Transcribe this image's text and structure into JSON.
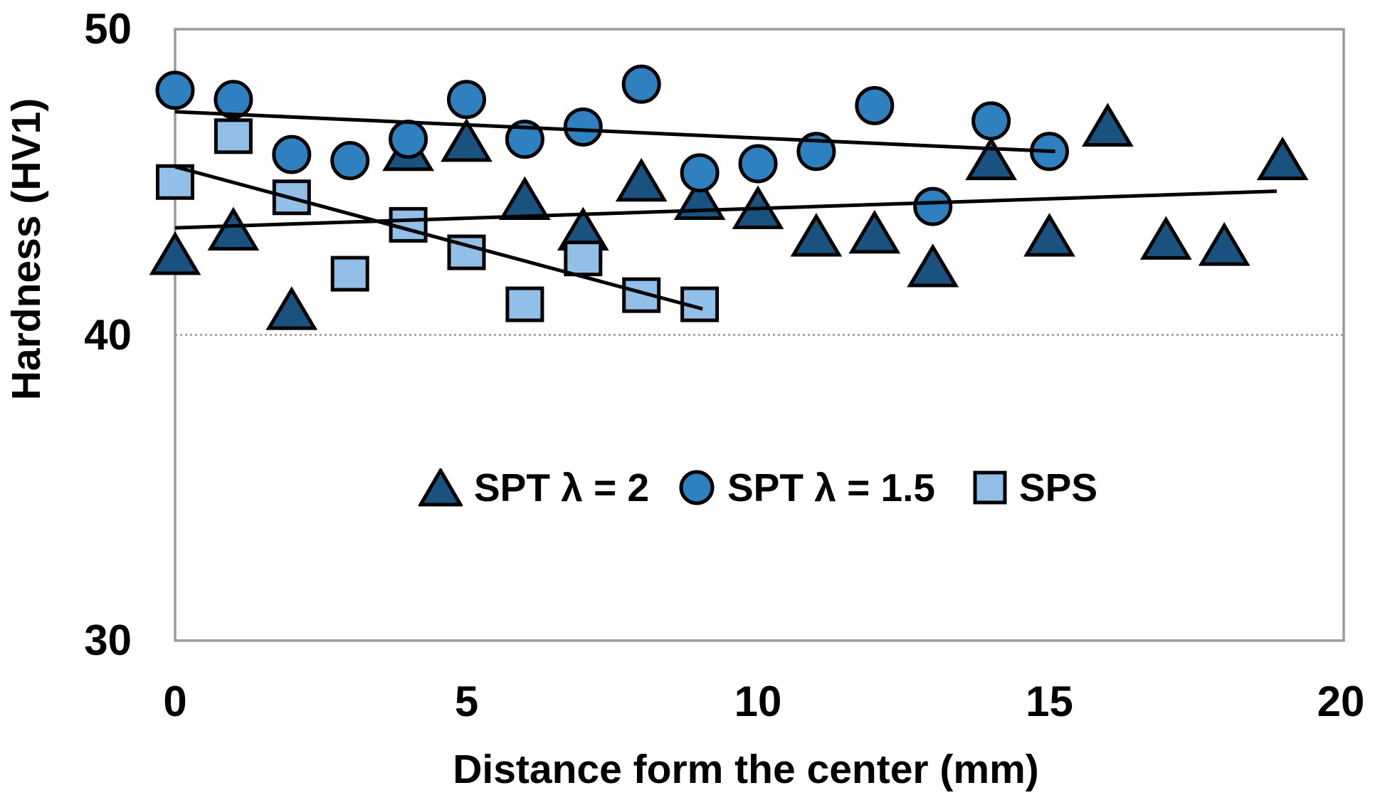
{
  "chart_data": {
    "type": "scatter",
    "xlabel": "Distance form the center (mm)",
    "ylabel": "Hardness (HV1)",
    "xlim": [
      0,
      20
    ],
    "ylim": [
      30,
      50
    ],
    "xticks": [
      0,
      5,
      10,
      15,
      20
    ],
    "yticks": [
      50,
      40,
      30
    ],
    "xtick_labels": [
      "0",
      "5",
      "10",
      "15",
      "20"
    ],
    "ytick_labels": [
      "50",
      "40",
      "30"
    ],
    "gridlines_y": [
      40
    ],
    "grid_color": "#A6A6A6",
    "axis_color": "#9B9B9B",
    "trend_color": "#000000",
    "marker_stroke": "#000000",
    "series": [
      {
        "name": "SPT  λ = 2",
        "marker": "triangle",
        "color": "#1A527F",
        "points": [
          [
            0,
            42.6
          ],
          [
            1,
            43.4
          ],
          [
            2,
            40.8
          ],
          [
            4,
            46.0
          ],
          [
            5,
            46.3
          ],
          [
            6,
            44.4
          ],
          [
            7,
            43.4
          ],
          [
            8,
            45.0
          ],
          [
            9,
            44.4
          ],
          [
            10,
            44.1
          ],
          [
            11,
            43.2
          ],
          [
            12,
            43.3
          ],
          [
            13,
            42.2
          ],
          [
            14,
            45.7
          ],
          [
            15,
            43.2
          ],
          [
            16,
            46.8
          ],
          [
            17,
            43.1
          ],
          [
            18,
            42.9
          ],
          [
            19,
            45.7
          ]
        ]
      },
      {
        "name": "SPT  λ = 1.5",
        "marker": "circle",
        "color": "#2E81BE",
        "points": [
          [
            0,
            48.0
          ],
          [
            1,
            47.7
          ],
          [
            2,
            45.9
          ],
          [
            3,
            45.7
          ],
          [
            4,
            46.4
          ],
          [
            5,
            47.7
          ],
          [
            6,
            46.4
          ],
          [
            7,
            46.8
          ],
          [
            8,
            48.2
          ],
          [
            9,
            45.3
          ],
          [
            10,
            45.6
          ],
          [
            11,
            46.0
          ],
          [
            12,
            47.5
          ],
          [
            13,
            44.2
          ],
          [
            14,
            47.0
          ],
          [
            15,
            46.0
          ]
        ]
      },
      {
        "name": "SPS",
        "marker": "square",
        "color": "#92BFE8",
        "points": [
          [
            0,
            45.0
          ],
          [
            1,
            46.5
          ],
          [
            2,
            44.5
          ],
          [
            3,
            42.0
          ],
          [
            4,
            43.6
          ],
          [
            5,
            42.7
          ],
          [
            6,
            41.0
          ],
          [
            7,
            42.5
          ],
          [
            8,
            41.3
          ],
          [
            9,
            41.0
          ]
        ]
      }
    ],
    "trendlines": [
      {
        "series": "SPT  λ = 2",
        "from": [
          0,
          43.5
        ],
        "to": [
          18.9,
          44.7
        ]
      },
      {
        "series": "SPT  λ = 1.5",
        "from": [
          0,
          47.3
        ],
        "to": [
          15.1,
          46.0
        ]
      },
      {
        "series": "SPS",
        "from": [
          0,
          45.5
        ],
        "to": [
          9.05,
          40.85
        ]
      }
    ],
    "legend_position": "bottom-center-inside"
  }
}
